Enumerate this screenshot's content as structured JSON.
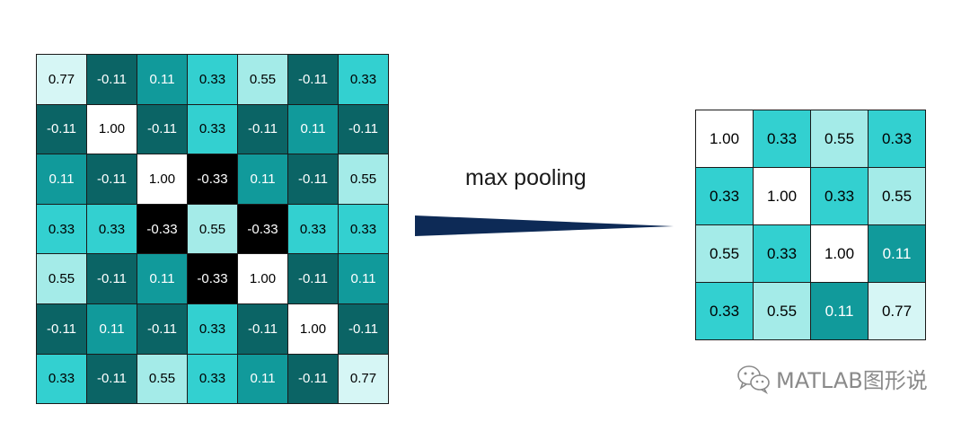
{
  "caption": "max pooling",
  "watermark": "MATLAB图形说",
  "colors": {
    "dark_teal": "#0b6465",
    "teal": "#119a9b",
    "cyan": "#33d0d0",
    "light_cyan": "#a4ebe8",
    "pale_cyan": "#d6f6f5",
    "white": "#ffffff",
    "black": "#000000",
    "arrow": "#0d2a56"
  },
  "input_grid": [
    [
      "0.77",
      "-0.11",
      "0.11",
      "0.33",
      "0.55",
      "-0.11",
      "0.33"
    ],
    [
      "-0.11",
      "1.00",
      "-0.11",
      "0.33",
      "-0.11",
      "0.11",
      "-0.11"
    ],
    [
      "0.11",
      "-0.11",
      "1.00",
      "-0.33",
      "0.11",
      "-0.11",
      "0.55"
    ],
    [
      "0.33",
      "0.33",
      "-0.33",
      "0.55",
      "-0.33",
      "0.33",
      "0.33"
    ],
    [
      "0.55",
      "-0.11",
      "0.11",
      "-0.33",
      "1.00",
      "-0.11",
      "0.11"
    ],
    [
      "-0.11",
      "0.11",
      "-0.11",
      "0.33",
      "-0.11",
      "1.00",
      "-0.11"
    ],
    [
      "0.33",
      "-0.11",
      "0.55",
      "0.33",
      "0.11",
      "-0.11",
      "0.77"
    ]
  ],
  "output_grid": [
    [
      "1.00",
      "0.33",
      "0.55",
      "0.33"
    ],
    [
      "0.33",
      "1.00",
      "0.33",
      "0.55"
    ],
    [
      "0.55",
      "0.33",
      "1.00",
      "0.11"
    ],
    [
      "0.33",
      "0.55",
      "0.11",
      "0.77"
    ]
  ]
}
